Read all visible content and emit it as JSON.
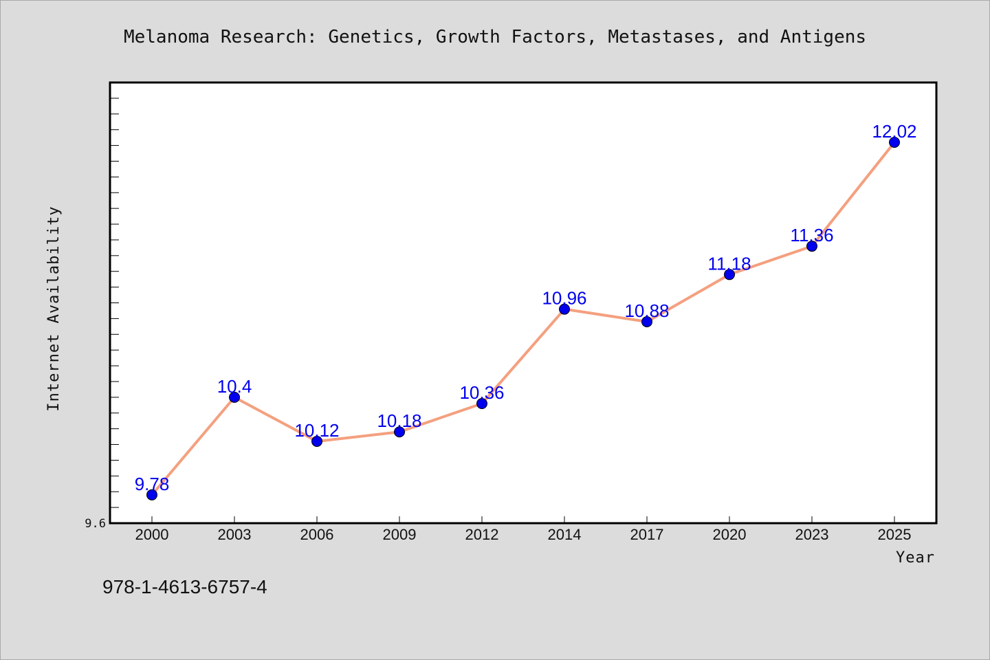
{
  "chart_data": {
    "type": "line",
    "title": "Melanoma Research: Genetics, Growth Factors, Metastases, and Antigens",
    "xlabel": "Year",
    "ylabel": "Internet Availability",
    "categories": [
      "2000",
      "2003",
      "2006",
      "2009",
      "2012",
      "2014",
      "2017",
      "2020",
      "2023",
      "2025"
    ],
    "series": [
      {
        "values": [
          9.78,
          10.4,
          10.12,
          10.18,
          10.36,
          10.96,
          10.88,
          11.18,
          11.36,
          12.02
        ],
        "labels": [
          "9.78",
          "10.4",
          "10.12",
          "10.18",
          "10.36",
          "10.96",
          "10.88",
          "11.18",
          "11.36",
          "12.02"
        ]
      }
    ],
    "ylim": [
      9.6,
      12.4
    ],
    "y_tick_labels": [
      "9.6"
    ],
    "grid": false,
    "legend": "none",
    "line_color": "#f4a07f",
    "marker_color": "#0000ee"
  },
  "footer": {
    "isbn": "978-1-4613-6757-4"
  }
}
